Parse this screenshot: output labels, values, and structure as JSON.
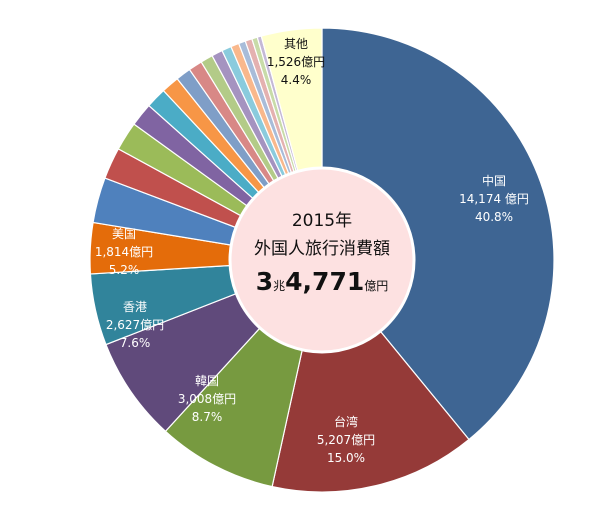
{
  "chart_data": {
    "type": "pie",
    "variant": "donut",
    "center_title_line1": "2015年",
    "center_title_line2": "外国人旅行消費額",
    "center_total_prefix": "3",
    "center_total_mid": "兆",
    "center_total_main": "4,771",
    "center_total_unit": "億円",
    "slices": [
      {
        "name": "中国",
        "value_label": "14,174 億円",
        "percent_label": "40.8%",
        "percent": 40.8,
        "color": "#3e6593",
        "text_color": "#ffffff"
      },
      {
        "name": "台湾",
        "value_label": "5,207億円",
        "percent_label": "15.0%",
        "percent": 15.0,
        "color": "#953a38",
        "text_color": "#ffffff"
      },
      {
        "name": "韓国",
        "value_label": "3,008億円",
        "percent_label": "8.7%",
        "percent": 8.7,
        "color": "#779a40",
        "text_color": "#ffffff"
      },
      {
        "name": "香港",
        "value_label": "2,627億円",
        "percent_label": "7.6%",
        "percent": 7.6,
        "color": "#604a7b",
        "text_color": "#ffffff"
      },
      {
        "name": "美国",
        "value_label": "1,814億円",
        "percent_label": "5.2%",
        "percent": 5.2,
        "color": "#31849b",
        "text_color": "#ffffff"
      },
      {
        "name": "",
        "percent": 3.7,
        "color": "#e46c0a"
      },
      {
        "name": "",
        "percent": 3.3,
        "color": "#4f81bd"
      },
      {
        "name": "",
        "percent": 2.3,
        "color": "#c0504d"
      },
      {
        "name": "",
        "percent": 2.1,
        "color": "#9bbb59"
      },
      {
        "name": "",
        "percent": 1.7,
        "color": "#8064a2"
      },
      {
        "name": "",
        "percent": 1.5,
        "color": "#4bacc6"
      },
      {
        "name": "",
        "percent": 1.3,
        "color": "#f79646"
      },
      {
        "name": "",
        "percent": 1.1,
        "color": "#7f9ec7"
      },
      {
        "name": "",
        "percent": 1.0,
        "color": "#d88886"
      },
      {
        "name": "",
        "percent": 0.9,
        "color": "#b3cb88"
      },
      {
        "name": "",
        "percent": 0.8,
        "color": "#a593c0"
      },
      {
        "name": "",
        "percent": 0.7,
        "color": "#8acbdd"
      },
      {
        "name": "",
        "percent": 0.6,
        "color": "#f9b88c"
      },
      {
        "name": "",
        "percent": 0.5,
        "color": "#a8bcd9"
      },
      {
        "name": "",
        "percent": 0.5,
        "color": "#e4b1b0"
      },
      {
        "name": "",
        "percent": 0.4,
        "color": "#c8dba8"
      },
      {
        "name": "",
        "percent": 0.3,
        "color": "#c4b8d6"
      },
      {
        "name": "其他",
        "value_label": "1,526億円",
        "percent_label": "4.4%",
        "percent": 4.4,
        "color": "#ffffcc",
        "text_color": "#111111"
      }
    ]
  }
}
